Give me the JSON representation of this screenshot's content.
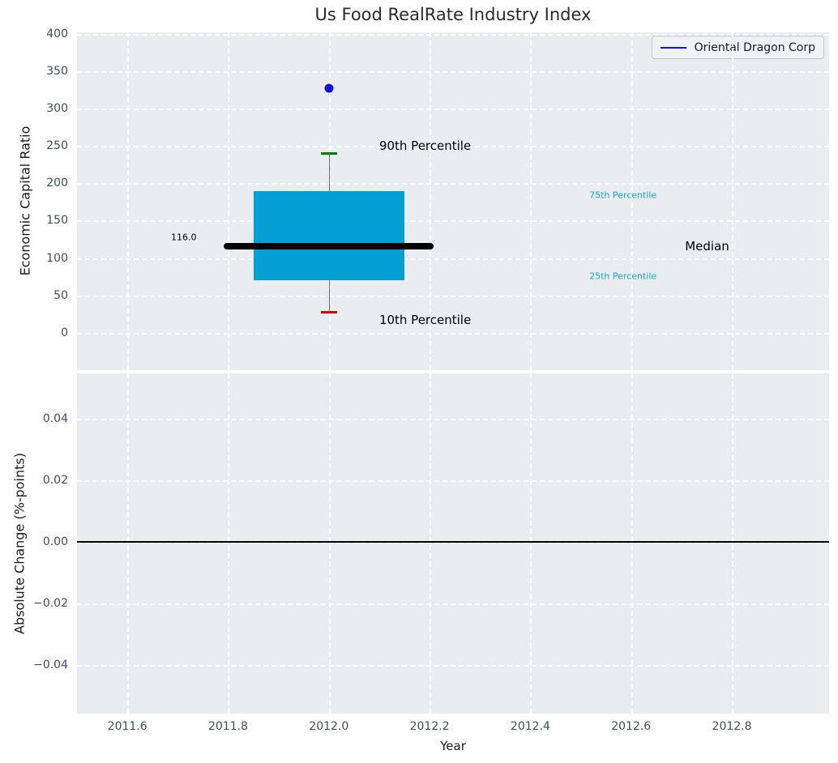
{
  "title": "Us Food RealRate Industry Index",
  "legend": {
    "label": "Oriental Dragon Corp",
    "line_color": "#1212dd"
  },
  "chart_data": {
    "type": "boxplot",
    "title": "Us Food RealRate Industry Index",
    "xlabel": "Year",
    "xlim": [
      2011.5,
      2012.993
    ],
    "xticks": [
      {
        "v": 2011.6,
        "label": "2011.6"
      },
      {
        "v": 2011.8,
        "label": "2011.8"
      },
      {
        "v": 2012.0,
        "label": "2012.0"
      },
      {
        "v": 2012.2,
        "label": "2012.2"
      },
      {
        "v": 2012.4,
        "label": "2012.4"
      },
      {
        "v": 2012.6,
        "label": "2012.6"
      },
      {
        "v": 2012.8,
        "label": "2012.8"
      }
    ],
    "grid": "white-dashed",
    "legend_position": "top-right",
    "subplots": [
      {
        "name": "economic-capital-ratio",
        "ylabel": "Economic Capital Ratio",
        "ylim": [
          -50,
          402
        ],
        "yticks": [
          {
            "v": 400,
            "label": "400"
          },
          {
            "v": 350,
            "label": "350"
          },
          {
            "v": 300,
            "label": "300"
          },
          {
            "v": 250,
            "label": "250"
          },
          {
            "v": 200,
            "label": "200"
          },
          {
            "v": 150,
            "label": "150"
          },
          {
            "v": 100,
            "label": "100"
          },
          {
            "v": 50,
            "label": "50"
          },
          {
            "v": 0,
            "label": "0"
          }
        ],
        "box": {
          "x": 2012.0,
          "box_halfwidth": 0.15,
          "median_line_halfwidth": 0.208,
          "q25": 70,
          "median": 116.0,
          "q75": 190,
          "p10": 28,
          "p90": 240,
          "median_label": "116.0",
          "colors": {
            "box": "#04a0d5",
            "median": "#000000",
            "whisker": "#6e6e6e",
            "p90_cap": "#008000",
            "p10_cap": "#dd0000"
          }
        },
        "point": {
          "series": "Oriental Dragon Corp",
          "x": 2012.0,
          "y": 327,
          "color": "#1212dd"
        },
        "annotations": [
          {
            "text": "90th Percentile",
            "x": 2012.1,
            "y": 250,
            "color": "#000000",
            "size": 15,
            "anchor": "start"
          },
          {
            "text": "10th Percentile",
            "x": 2012.1,
            "y": 17,
            "color": "#000000",
            "size": 15,
            "anchor": "start"
          },
          {
            "text": "75th Percentile",
            "x": 2012.517,
            "y": 184,
            "color": "#17a3d7",
            "size": 11,
            "anchor": "start"
          },
          {
            "text": "25th Percentile",
            "x": 2012.517,
            "y": 76,
            "color": "#17a3d7",
            "size": 11,
            "anchor": "start"
          },
          {
            "text": "Median",
            "x": 2012.707,
            "y": 116,
            "color": "#000000",
            "size": 15,
            "anchor": "start"
          },
          {
            "text": "116.0",
            "x": 2011.712,
            "y": 128,
            "color": "#000000",
            "size": 11,
            "anchor": "middle"
          }
        ]
      },
      {
        "name": "absolute-change",
        "ylabel": "Absolute Change (%-points)",
        "ylim": [
          -0.0558,
          0.0547
        ],
        "yticks": [
          {
            "v": 0.04,
            "label": "0.04"
          },
          {
            "v": 0.02,
            "label": "0.02"
          },
          {
            "v": 0.0,
            "label": "0.00"
          },
          {
            "v": -0.02,
            "label": "−0.02"
          },
          {
            "v": -0.04,
            "label": "−0.04"
          }
        ],
        "zero_line": 0.0
      }
    ]
  }
}
